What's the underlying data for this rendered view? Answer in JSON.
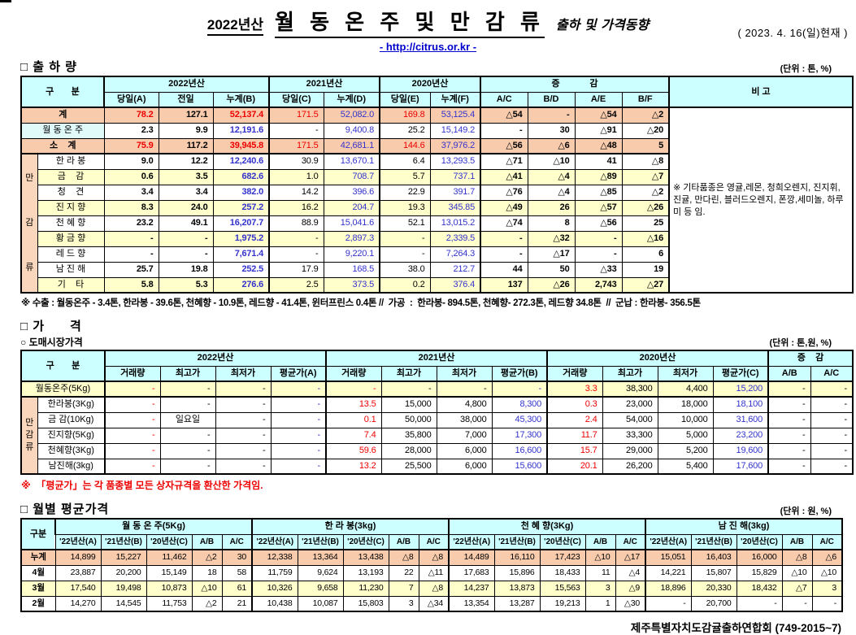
{
  "header": {
    "year_label": "2022년산",
    "title": "월 동 온 주 및 만 감 류",
    "subtitle": "출하 및 가격동향",
    "url": "- http://citrus.or.kr -",
    "date": "( 2023.  4.  16(일)현재 )"
  },
  "colors": {
    "header_bg": "#CCFFFF",
    "sum_row_bg": "#F8CBAD",
    "highlight_row_bg": "#FFFFCC",
    "decrease_red": "#EE0000",
    "cumulative_blue": "#3333CC",
    "link_blue": "#0000CC"
  },
  "shipment": {
    "section_title": "□ 출 하 량",
    "unit": "(단위 : 톤, %)",
    "head": {
      "corner": "구       분",
      "groups": [
        {
          "label": "2022년산",
          "span": 3
        },
        {
          "label": "2021년산",
          "span": 2
        },
        {
          "label": "2020년산",
          "span": 2
        },
        {
          "label": "증            감",
          "span": 4
        }
      ],
      "sub": [
        "당일(A)",
        "전일",
        "누계(B)",
        "당일(C)",
        "누계(D)",
        "당일(E)",
        "누계(F)",
        "A/C",
        "B/D",
        "A/E",
        "B/F"
      ],
      "remark_label": "비 고"
    },
    "group_label": "만감류",
    "rows": [
      {
        "label": "계",
        "type": "sum",
        "bg": "peach",
        "cells": [
          "78.2",
          "127.1",
          "52,137.4",
          "171.5",
          "52,082.0",
          "169.8",
          "53,125.4",
          "△54",
          "-",
          "△54",
          "△2"
        ]
      },
      {
        "label": "월 동 온 주",
        "type": "normal",
        "bg": "white",
        "label_cyan": true,
        "cells": [
          "2.3",
          "9.9",
          "12,191.6",
          "-",
          "9,400.8",
          "25.2",
          "15,149.2",
          "-",
          "30",
          "△91",
          "△20"
        ]
      },
      {
        "label": "소    계",
        "type": "sum",
        "bg": "peach",
        "cells": [
          "75.9",
          "117.2",
          "39,945.8",
          "171.5",
          "42,681.1",
          "144.6",
          "37,976.2",
          "△56",
          "△6",
          "△48",
          "5"
        ]
      },
      {
        "label": "한 라 봉",
        "type": "normal",
        "bg": "white",
        "group": true,
        "cells": [
          "9.0",
          "12.2",
          "12,240.6",
          "30.9",
          "13,670.1",
          "6.4",
          "13,293.5",
          "△71",
          "△10",
          "41",
          "△8"
        ]
      },
      {
        "label": "금    감",
        "type": "normal",
        "bg": "yellow",
        "group": true,
        "cells": [
          "0.6",
          "3.5",
          "682.6",
          "1.0",
          "708.7",
          "5.7",
          "737.1",
          "△41",
          "△4",
          "△89",
          "△7"
        ]
      },
      {
        "label": "청    견",
        "type": "normal",
        "bg": "white",
        "group": true,
        "cells": [
          "3.4",
          "3.4",
          "382.0",
          "14.2",
          "396.6",
          "22.9",
          "391.7",
          "△76",
          "△4",
          "△85",
          "△2"
        ]
      },
      {
        "label": "진 지 향",
        "type": "normal",
        "bg": "yellow",
        "group": true,
        "cells": [
          "8.3",
          "24.0",
          "257.2",
          "16.2",
          "204.7",
          "19.3",
          "345.85",
          "△49",
          "26",
          "△57",
          "△26"
        ]
      },
      {
        "label": "천 혜 향",
        "type": "normal",
        "bg": "white",
        "group": true,
        "cells": [
          "23.2",
          "49.1",
          "16,207.7",
          "88.9",
          "15,041.6",
          "52.1",
          "13,015.2",
          "△74",
          "8",
          "△56",
          "25"
        ]
      },
      {
        "label": "황 금 향",
        "type": "normal",
        "bg": "yellow",
        "group": true,
        "cells": [
          "-",
          "-",
          "1,975.2",
          "-",
          "2,897.3",
          "-",
          "2,339.5",
          "-",
          "△32",
          "-",
          "△16"
        ]
      },
      {
        "label": "레 드 향",
        "type": "normal",
        "bg": "white",
        "group": true,
        "cells": [
          "-",
          "-",
          "7,671.4",
          "-",
          "9,220.1",
          "-",
          "7,264.3",
          "-",
          "△17",
          "-",
          "6"
        ]
      },
      {
        "label": "남 진 해",
        "type": "normal",
        "bg": "white",
        "group": true,
        "cells": [
          "25.7",
          "19.8",
          "252.5",
          "17.9",
          "168.5",
          "38.0",
          "212.7",
          "44",
          "50",
          "△33",
          "19"
        ]
      },
      {
        "label": "기    타",
        "type": "normal",
        "bg": "yellow",
        "group": true,
        "cells": [
          "5.8",
          "5.3",
          "276.6",
          "2.5",
          "373.5",
          "0.2",
          "376.4",
          "137",
          "△26",
          "2,743",
          "△27"
        ]
      }
    ],
    "remark": "※ 기타품종은 영귤,레몬, 청희오렌지, 진지휘, 진귤, 만다린, 블러드오렌지, 폰깡,세미놀, 하루미 등 임.",
    "footnote": "※ 수출 : 월동온주 - 3.4톤, 한라봉 - 39.6톤, 천혜향 - 10.9톤, 레드향 - 41.4톤, 윈터프린스 0.4톤 //  가공  :  한라봉- 894.5톤, 천혜향- 272.3톤, 레드향 34.8톤  //  군납 : 한라봉- 356.5톤"
  },
  "price": {
    "section_title": "□ 가      격",
    "sub_section": "○ 도매시장가격",
    "unit": "(단위 : 톤,원, %)",
    "head": {
      "corner": "구       분",
      "groups": [
        {
          "label": "2022년산",
          "span": 4
        },
        {
          "label": "2021년산",
          "span": 4
        },
        {
          "label": "2020년산",
          "span": 4
        },
        {
          "label": "증    감",
          "span": 2
        }
      ],
      "sub": [
        "거래량",
        "최고가",
        "최저가",
        "평균가(A)",
        "거래량",
        "최고가",
        "최저가",
        "평균가(B)",
        "거래량",
        "최고가",
        "최저가",
        "평균가(C)",
        "A/B",
        "A/C"
      ]
    },
    "group_label": "만감류",
    "rows": [
      {
        "label": "월동온주(5Kg)",
        "bg": "yellow",
        "cells": [
          "-",
          "-",
          "-",
          "-",
          "-",
          "-",
          "-",
          "-",
          "3.3",
          "38,300",
          "4,400",
          "15,200",
          "-",
          "-"
        ]
      },
      {
        "label": "한라봉(3Kg)",
        "bg": "white",
        "group": true,
        "cells": [
          "-",
          "-",
          "-",
          "-",
          "13.5",
          "15,000",
          "4,800",
          "8,300",
          "0.3",
          "23,000",
          "18,000",
          "18,100",
          "-",
          "-"
        ]
      },
      {
        "label": "금 감(10Kg)",
        "bg": "white",
        "group": true,
        "cells": [
          "-",
          "일요일",
          "-",
          "-",
          "0.1",
          "50,000",
          "38,000",
          "45,300",
          "2.4",
          "54,000",
          "10,000",
          "31,600",
          "-",
          "-"
        ]
      },
      {
        "label": "진지향(5Kg)",
        "bg": "white",
        "group": true,
        "cells": [
          "-",
          "-",
          "-",
          "-",
          "7.4",
          "35,800",
          "7,000",
          "17,300",
          "11.7",
          "33,300",
          "5,000",
          "23,200",
          "-",
          "-"
        ]
      },
      {
        "label": "천혜향(3Kg)",
        "bg": "white",
        "group": true,
        "cells": [
          "-",
          "-",
          "-",
          "-",
          "59.6",
          "28,000",
          "6,000",
          "16,600",
          "15.7",
          "29,000",
          "5,200",
          "19,600",
          "-",
          "-"
        ]
      },
      {
        "label": "남진해(3kg)",
        "bg": "white",
        "group": true,
        "cells": [
          "-",
          "-",
          "-",
          "-",
          "13.2",
          "25,500",
          "6,000",
          "15,600",
          "20.1",
          "26,200",
          "5,400",
          "17,600",
          "-",
          "-"
        ]
      }
    ],
    "note": "※  「평균가」는 각 품종별 모든 상자규격을 환산한 가격임."
  },
  "monthly": {
    "section_title": "□ 월별 평균가격",
    "unit": "(단위 : 원, %)",
    "head": {
      "corner": "구분",
      "groups": [
        "월 동 온 주(5Kg)",
        "한 라 봉(3kg)",
        "천 혜 향(3Kg)",
        "남 진 해(3kg)"
      ],
      "sub": [
        "'22년산(A)",
        "'21년산(B)",
        "'20년산(C)",
        "A/B",
        "A/C"
      ]
    },
    "rows": [
      {
        "label": "누계",
        "bg": "peach",
        "cells": [
          "14,899",
          "15,227",
          "11,462",
          "△2",
          "30",
          "12,338",
          "13,364",
          "13,438",
          "△8",
          "△8",
          "14,489",
          "16,110",
          "17,423",
          "△10",
          "△17",
          "15,051",
          "16,403",
          "16,000",
          "△8",
          "△6"
        ]
      },
      {
        "label": "4월",
        "bg": "white",
        "cells": [
          "23,887",
          "20,200",
          "15,149",
          "18",
          "58",
          "11,759",
          "9,624",
          "13,193",
          "22",
          "△11",
          "17,683",
          "15,896",
          "18,433",
          "11",
          "△4",
          "14,221",
          "15,807",
          "15,829",
          "△10",
          "△10"
        ]
      },
      {
        "label": "3월",
        "bg": "yellow",
        "cells": [
          "17,540",
          "19,498",
          "10,873",
          "△10",
          "61",
          "10,326",
          "9,658",
          "11,230",
          "7",
          "△8",
          "14,237",
          "13,873",
          "15,563",
          "3",
          "△9",
          "18,896",
          "20,330",
          "18,432",
          "△7",
          "3"
        ]
      },
      {
        "label": "2월",
        "bg": "white",
        "cells": [
          "14,270",
          "14,545",
          "11,753",
          "△2",
          "21",
          "10,438",
          "10,087",
          "15,803",
          "3",
          "△34",
          "13,354",
          "13,287",
          "19,213",
          "1",
          "△30",
          "-",
          "20,700",
          "-",
          "-",
          "-"
        ]
      }
    ]
  },
  "footer": "제주특별자치도감귤출하연합회 (749-2015~7)"
}
